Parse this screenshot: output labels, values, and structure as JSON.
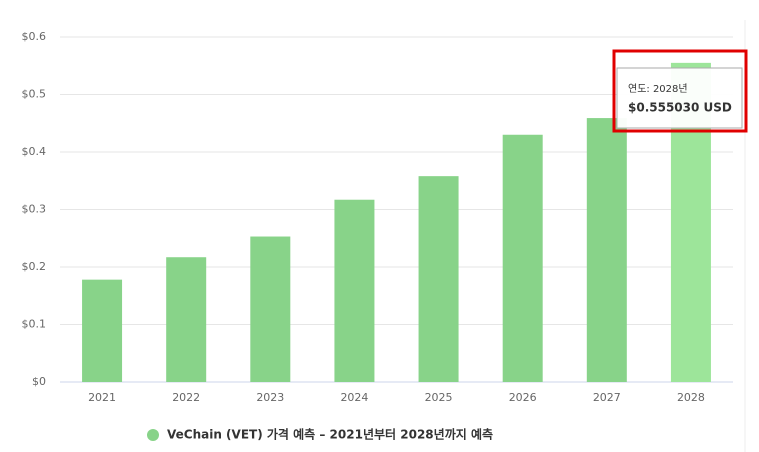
{
  "chart_data": {
    "type": "bar",
    "categories": [
      "2021",
      "2022",
      "2023",
      "2024",
      "2025",
      "2026",
      "2027",
      "2028"
    ],
    "series": [
      {
        "name": "VeChain (VET) 가격 예측 – 2021년부터 2028년까지 예측",
        "color": "#88d389",
        "colors": [
          "#88d389",
          "#88d389",
          "#88d389",
          "#88d389",
          "#88d389",
          "#88d389",
          "#88d389",
          "#9de59a"
        ],
        "values": [
          0.178,
          0.217,
          0.253,
          0.317,
          0.358,
          0.43,
          0.459,
          0.55503
        ]
      }
    ],
    "ylim": [
      0,
      0.6
    ],
    "yticks": [
      {
        "value": 0,
        "label": "$0"
      },
      {
        "value": 0.1,
        "label": "$0.1"
      },
      {
        "value": 0.2,
        "label": "$0.2"
      },
      {
        "value": 0.3,
        "label": "$0.3"
      },
      {
        "value": 0.4,
        "label": "$0.4"
      },
      {
        "value": 0.5,
        "label": "$0.5"
      },
      {
        "value": 0.6,
        "label": "$0.6"
      }
    ],
    "grid": true,
    "tooltip": {
      "title": "연도: 2028년",
      "text": "$0.555030 USD"
    }
  }
}
